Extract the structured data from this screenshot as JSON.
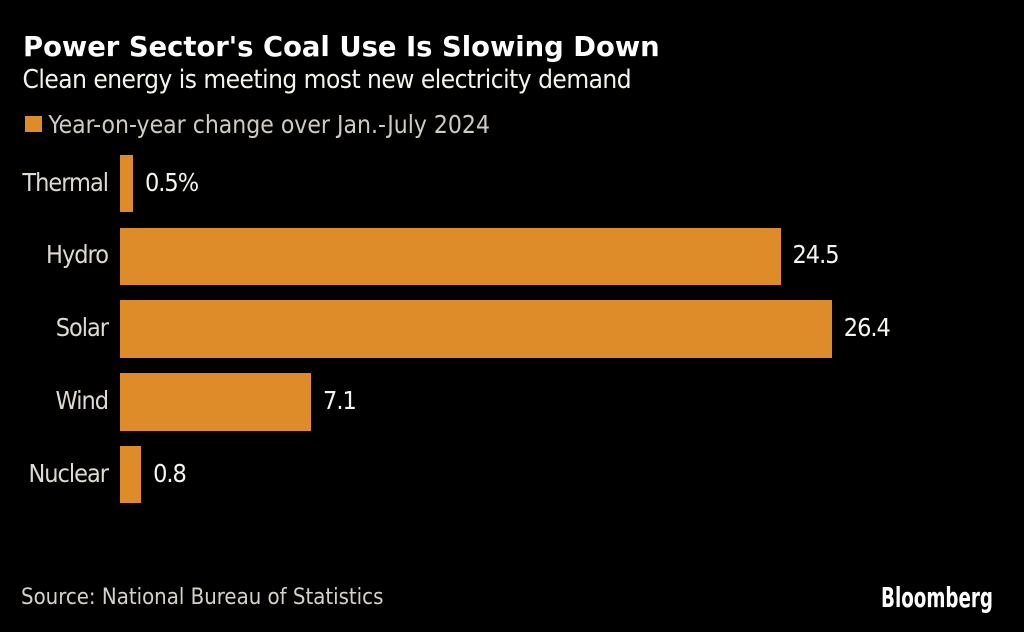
{
  "title": "Power Sector's Coal Use Is Slowing Down",
  "subtitle": "Clean energy is meeting most new electricity demand",
  "legend": {
    "label": "Year-on-year change over Jan.-July 2024",
    "swatch_color": "#DD8C29"
  },
  "source": "Source: National Bureau of Statistics",
  "brand": "Bloomberg",
  "colors": {
    "background": "#000000",
    "bar": "#DD8C29",
    "title_text": "#FFFFFF",
    "subtitle_text": "#F5F3EE",
    "legend_text": "#CFCBC4",
    "category_text": "#DEDAD2",
    "value_text": "#F6F4F0",
    "source_text": "#D6D2CA",
    "brand_text": "#FFFFFF"
  },
  "chart_data": {
    "type": "bar",
    "orientation": "horizontal",
    "title": "Power Sector's Coal Use Is Slowing Down",
    "subtitle": "Clean energy is meeting most new electricity demand",
    "series_name": "Year-on-year change over Jan.-July 2024",
    "categories": [
      "Thermal",
      "Hydro",
      "Solar",
      "Wind",
      "Nuclear"
    ],
    "values": [
      0.5,
      24.5,
      26.4,
      7.1,
      0.8
    ],
    "display_values": [
      "0.5%",
      "24.5",
      "26.4",
      "7.1",
      "0.8"
    ],
    "xlim": [
      0,
      26.4
    ],
    "unit": "%",
    "grid": false,
    "legend_position": "top-left"
  }
}
